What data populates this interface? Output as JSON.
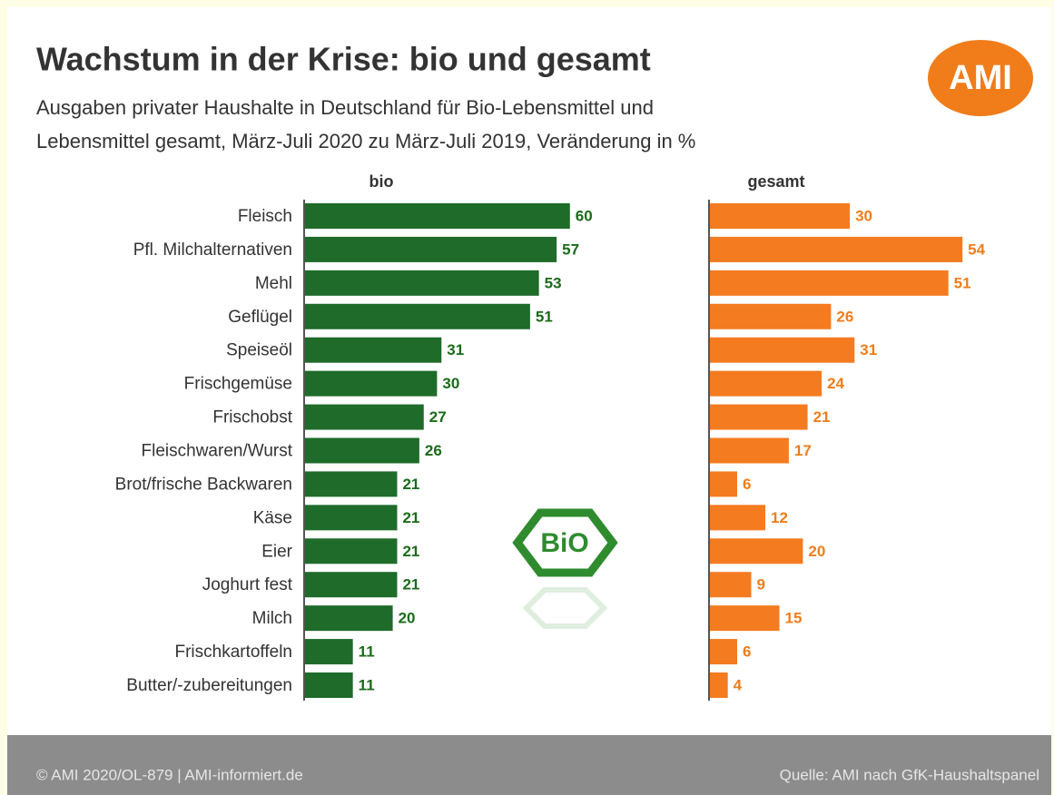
{
  "chart_data": {
    "type": "bar",
    "orientation": "horizontal",
    "title": "Wachstum in der Krise: bio und gesamt",
    "subtitle": [
      "Ausgaben privater Haushalte in Deutschland für Bio-Lebensmittel und",
      "Lebensmittel gesamt, März-Juli 2020 zu März-Juli 2019, Veränderung in %"
    ],
    "categories": [
      "Fleisch",
      "Pfl. Milchalternativen",
      "Mehl",
      "Geflügel",
      "Speiseöl",
      "Frischgemüse",
      "Frischobst",
      "Fleischwaren/Wurst",
      "Brot/frische Backwaren",
      "Käse",
      "Eier",
      "Joghurt fest",
      "Milch",
      "Frischkartoffeln",
      "Butter/-zubereitungen"
    ],
    "series": [
      {
        "name": "bio",
        "color": "#1e6b2a",
        "label_color": "#1a6b1a",
        "values": [
          60,
          57,
          53,
          51,
          31,
          30,
          27,
          26,
          21,
          21,
          21,
          21,
          20,
          11,
          11
        ]
      },
      {
        "name": "gesamt",
        "color": "#f47b20",
        "label_color": "#f07d1a",
        "values": [
          30,
          54,
          51,
          26,
          31,
          24,
          21,
          17,
          6,
          12,
          20,
          9,
          15,
          6,
          4
        ]
      }
    ]
  },
  "logo": "AMI",
  "badge": "BiO",
  "footer": {
    "left": "© AMI 2020/OL-879 | AMI-informiert.de",
    "right": "Quelle:  AMI nach GfK-Haushaltspanel"
  }
}
